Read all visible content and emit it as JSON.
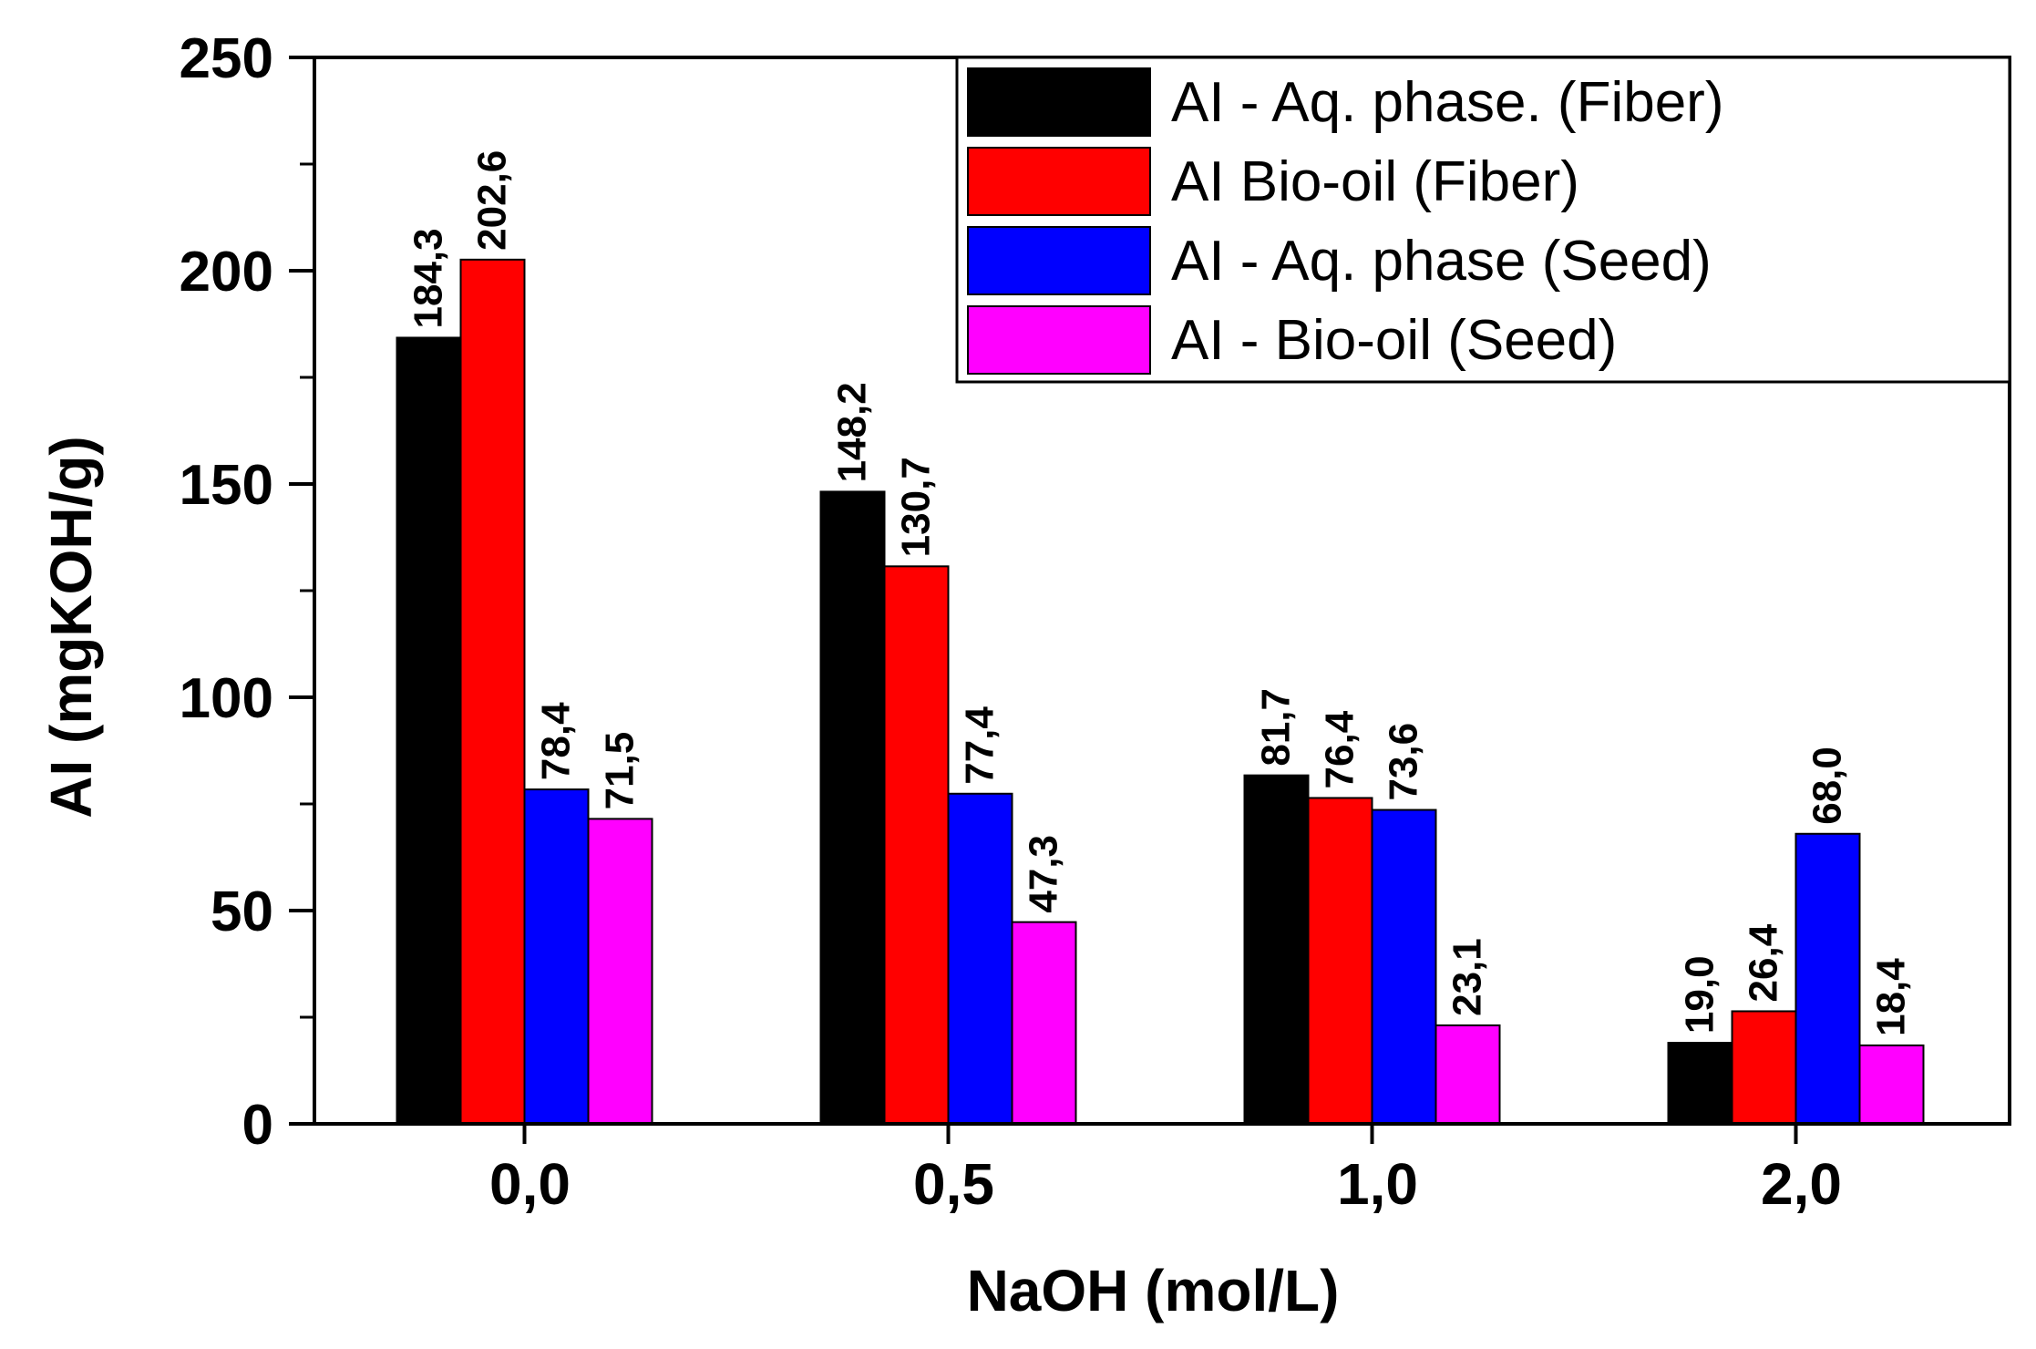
{
  "chart_data": {
    "type": "bar",
    "title": "",
    "xlabel": "NaOH (mol/L)",
    "ylabel": "AI (mgKOH/g)",
    "categories": [
      "0,0",
      "0,5",
      "1,0",
      "2,0"
    ],
    "ylim": [
      0,
      250
    ],
    "yticks": [
      0,
      50,
      100,
      150,
      200,
      250
    ],
    "ytick_labels": [
      "0",
      "50",
      "100",
      "150",
      "200",
      "250"
    ],
    "legend_position": "top-right",
    "series": [
      {
        "name": "AI - Aq. phase. (Fiber)",
        "color": "#000000",
        "values": [
          184.3,
          148.2,
          81.7,
          19.0
        ],
        "labels": [
          "184,3",
          "148,2",
          "81,7",
          "19,0"
        ]
      },
      {
        "name": "AI Bio-oil (Fiber)",
        "color": "#ff0000",
        "values": [
          202.6,
          130.7,
          76.4,
          26.4
        ],
        "labels": [
          "202,6",
          "130,7",
          "76,4",
          "26,4"
        ]
      },
      {
        "name": "AI - Aq. phase (Seed)",
        "color": "#0000ff",
        "values": [
          78.4,
          77.4,
          73.6,
          68.0
        ],
        "labels": [
          "78,4",
          "77,4",
          "73,6",
          "68,0"
        ]
      },
      {
        "name": "AI - Bio-oil (Seed)",
        "color": "#ff00ff",
        "values": [
          71.5,
          47.3,
          23.1,
          18.4
        ],
        "labels": [
          "71,5",
          "47,3",
          "23,1",
          "18,4"
        ]
      }
    ]
  }
}
